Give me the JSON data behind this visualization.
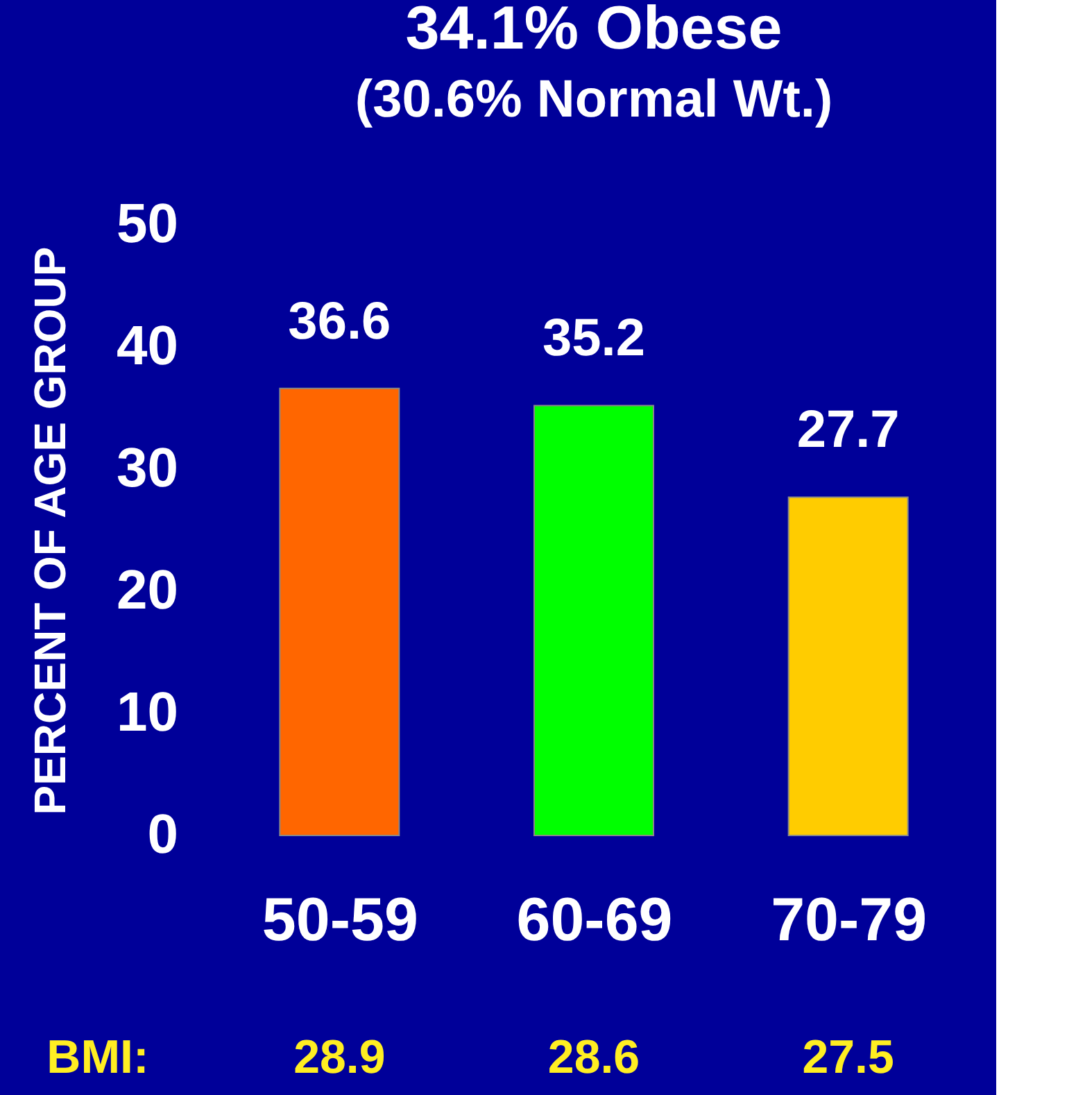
{
  "chart_data": {
    "type": "bar",
    "title": "34.1% Obese",
    "subtitle": "(30.6% Normal Wt.)",
    "ylabel": "PERCENT OF AGE GROUP",
    "categories": [
      "50-59",
      "60-69",
      "70-79"
    ],
    "values": [
      36.6,
      35.2,
      27.7
    ],
    "colors": [
      "#ff6600",
      "#00ff00",
      "#ffcc00"
    ],
    "ylim": [
      0,
      50
    ],
    "yticks": [
      0,
      10,
      20,
      30,
      40,
      50
    ],
    "grid": false,
    "data_labels": true,
    "annotations": [
      "BMI:",
      "28.9",
      "28.6",
      "27.5"
    ]
  }
}
